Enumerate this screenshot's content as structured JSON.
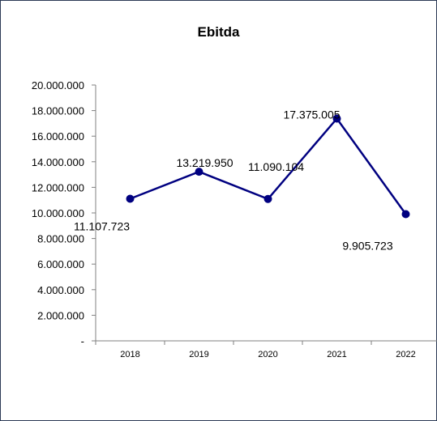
{
  "chart_data": {
    "type": "line",
    "title": "Ebitda",
    "xlabel": "",
    "ylabel": "",
    "categories": [
      "2018",
      "2019",
      "2020",
      "2021",
      "2022"
    ],
    "series": [
      {
        "values": [
          11107723,
          13219950,
          11090104,
          17375005,
          9905723
        ]
      }
    ],
    "data_labels": [
      "11.107.723",
      "13.219.950",
      "11.090.104",
      "17.375.005",
      "9.905.723"
    ],
    "y_ticks": [
      "-",
      "2.000.000",
      "4.000.000",
      "6.000.000",
      "8.000.000",
      "10.000.000",
      "12.000.000",
      "14.000.000",
      "16.000.000",
      "18.000.000",
      "20.000.000"
    ],
    "ylim": [
      0,
      20000000
    ],
    "grid": false,
    "legend": "none",
    "line_color": "#000080"
  }
}
